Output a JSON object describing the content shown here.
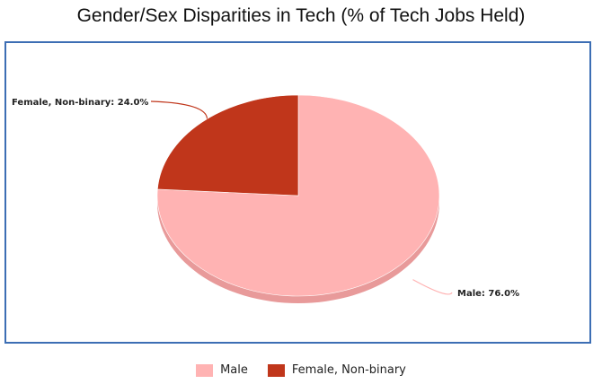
{
  "chart_data": {
    "type": "pie",
    "title": "Gender/Sex Disparities in Tech (% of Tech Jobs Held)",
    "slices": [
      {
        "label": "Male",
        "value": 76.0,
        "value_label": "76.0%",
        "color": "#ffb3b3",
        "side_color": "#e89a9a"
      },
      {
        "label": "Female, Non-binary",
        "value": 24.0,
        "value_label": "24.0%",
        "color": "#c0361b",
        "side_color": "#8e2412"
      }
    ],
    "style": "3d-tilted",
    "legend_position": "bottom"
  },
  "colors": {
    "frame_border": "#3c6eb4",
    "leader_male": "#ffb3b3",
    "leader_female": "#c0361b"
  }
}
